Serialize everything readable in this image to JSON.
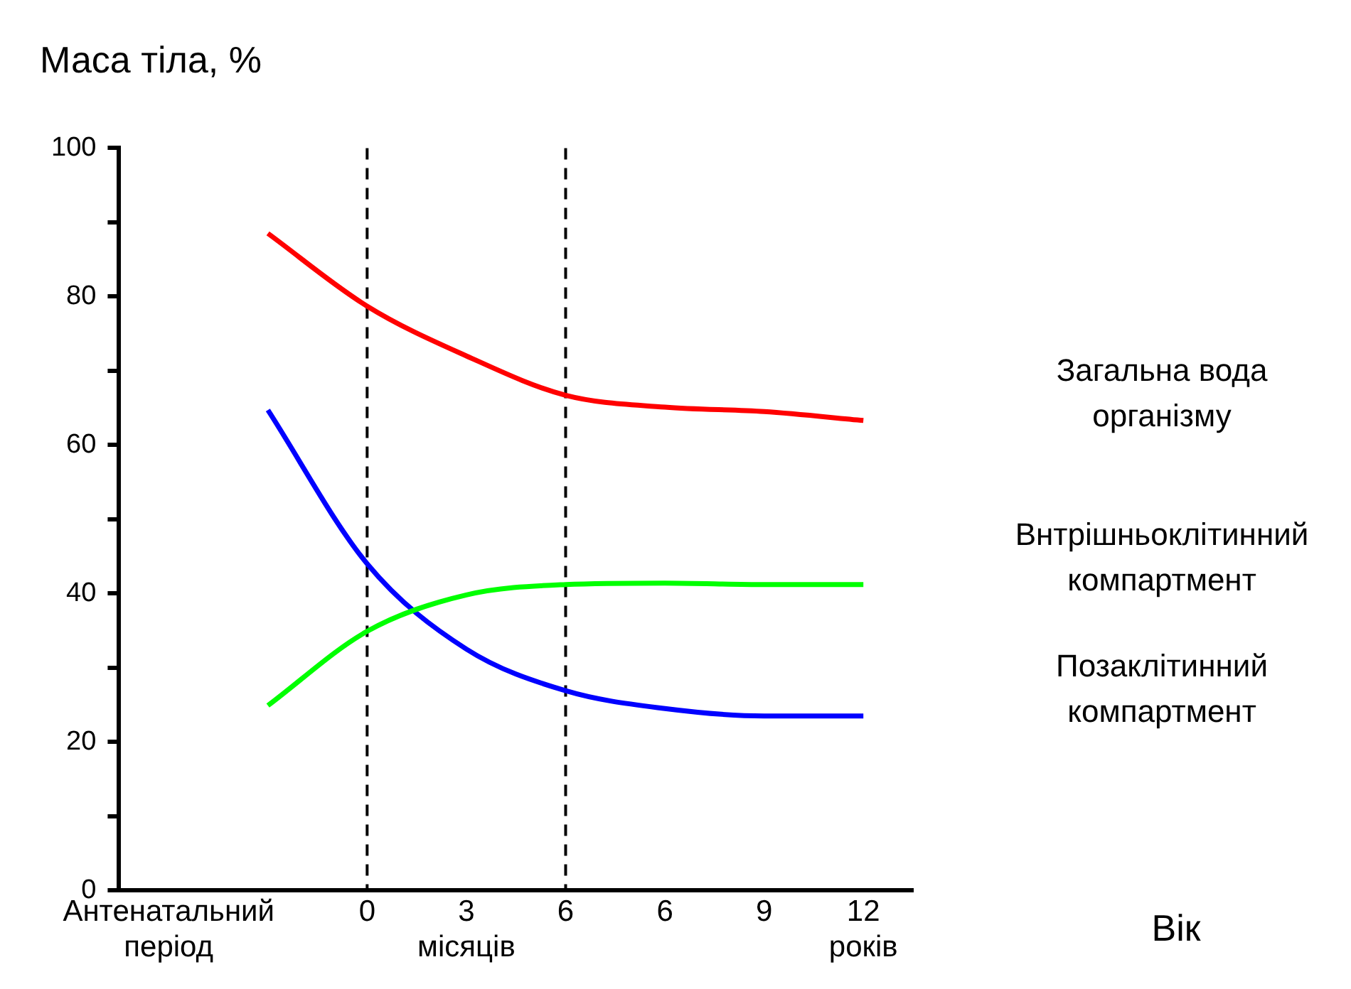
{
  "chart_data": {
    "type": "line",
    "title": "Маса тіла, %",
    "categories": [
      "Антенатальний період",
      null,
      "0",
      "3 місяців",
      "6",
      "6",
      "9",
      "12 років"
    ],
    "series": [
      {
        "name": "Загальна вода організму",
        "color": "#ff0000",
        "values": [
          null,
          88.5,
          78.7,
          72,
          66.7,
          65.1,
          64.5,
          63.3
        ]
      },
      {
        "name": "Внтрішньоклітинний компартмент",
        "color": "#00ff00",
        "values": [
          null,
          24.9,
          34.9,
          39.8,
          41.2,
          41.4,
          41.2,
          41.2
        ]
      },
      {
        "name": "Позаклітинний компартмент",
        "color": "#0000ff",
        "values": [
          null,
          64.7,
          44,
          32.5,
          26.9,
          24.5,
          23.5,
          23.5
        ]
      }
    ],
    "ylim": [
      0,
      100
    ],
    "yticks": [
      0,
      {
        "value": 10,
        "label": null
      },
      20,
      {
        "value": 30,
        "label": null
      },
      40,
      {
        "value": 50,
        "label": null
      },
      60,
      {
        "value": 70,
        "label": null
      },
      80,
      {
        "value": 90,
        "label": null
      },
      100
    ],
    "ref_lines": [
      {
        "axis": "x",
        "value": "0",
        "color": "#000000",
        "line_style": "dashed"
      },
      {
        "axis": "x",
        "value": "6",
        "color": "#000000",
        "line_style": "dashed"
      }
    ],
    "annotations": [
      "Вік"
    ],
    "legend": false,
    "grid": false,
    "marker": "none",
    "line_style": "solid"
  }
}
